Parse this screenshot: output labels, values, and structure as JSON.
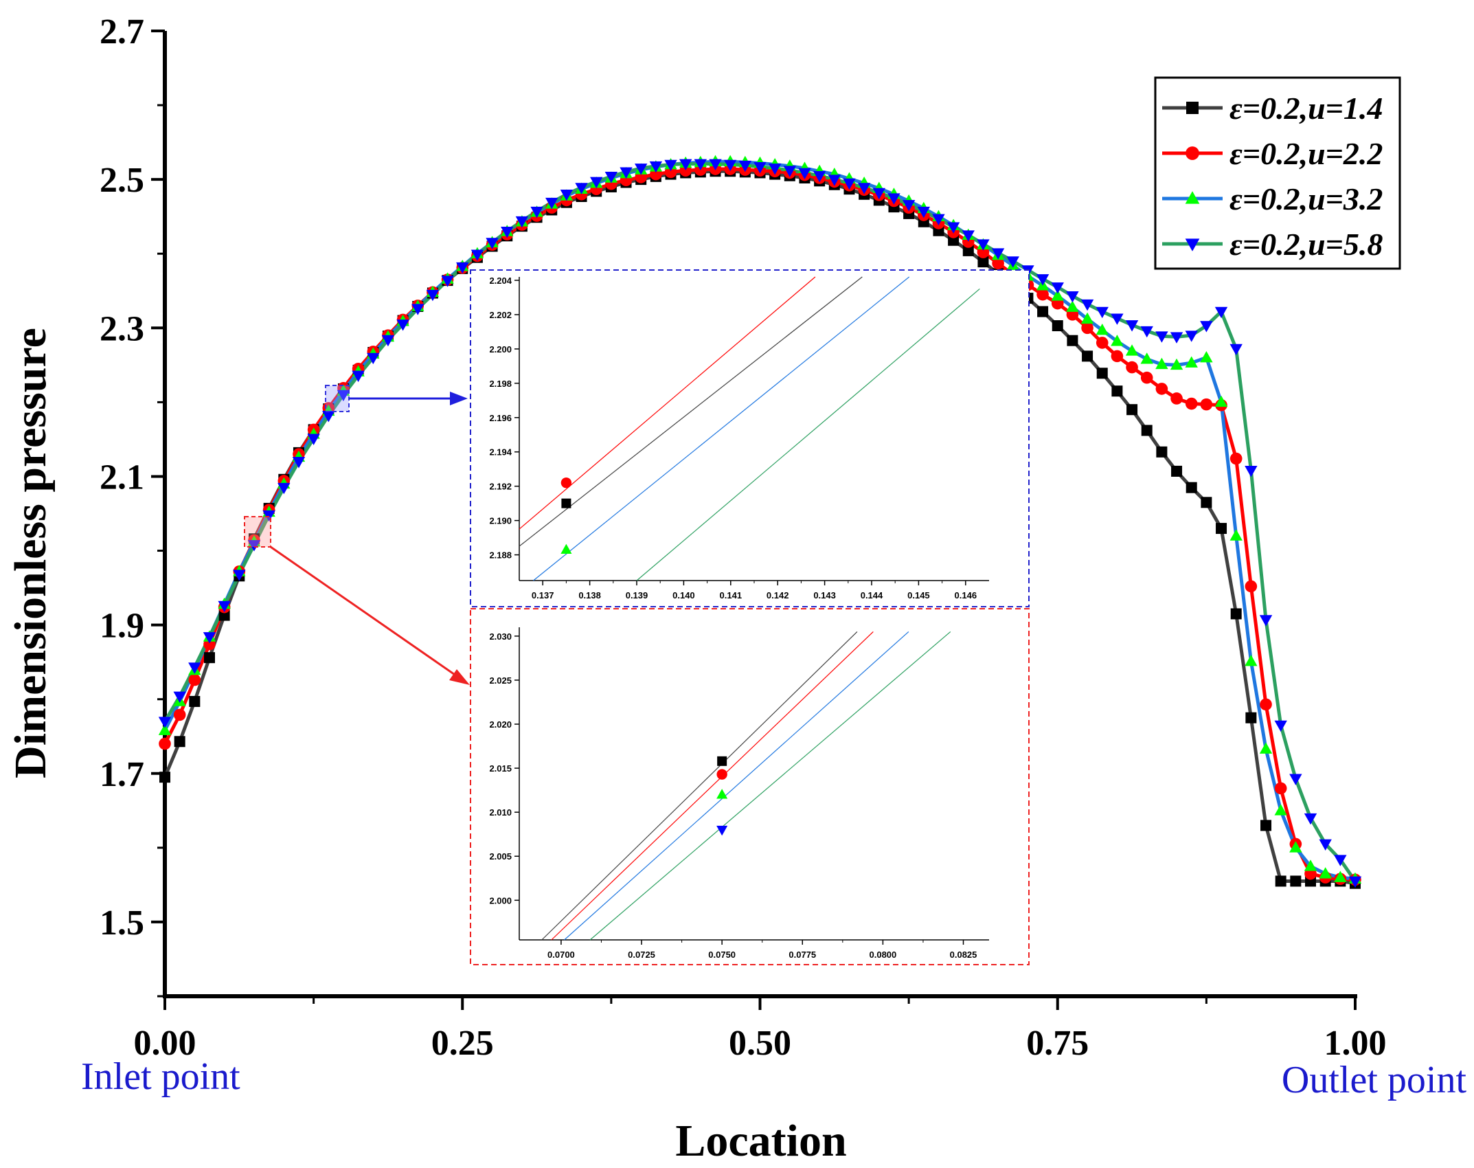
{
  "chart_data": {
    "type": "line",
    "xlabel": "Location",
    "ylabel": "Dimensionless pressure",
    "xlim": [
      0.0,
      1.0
    ],
    "ylim": [
      1.4,
      2.7
    ],
    "xticks": [
      0.0,
      0.25,
      0.5,
      0.75,
      1.0
    ],
    "xtick_labels": [
      "0.00",
      "0.25",
      "0.50",
      "0.75",
      "1.00"
    ],
    "yticks": [
      1.5,
      1.7,
      1.9,
      2.1,
      2.3,
      2.5,
      2.7
    ],
    "ytick_labels": [
      "1.5",
      "1.7",
      "1.9",
      "2.1",
      "2.3",
      "2.5",
      "2.7"
    ],
    "x_annotations": {
      "left": "Inlet point",
      "right": "Outlet point"
    },
    "legend_position": "top-right",
    "series": [
      {
        "name": "ε=0.2,u=1.4",
        "color": "#000000",
        "line_color": "#404040",
        "marker": "square",
        "x": [
          0.0,
          0.0125,
          0.025,
          0.0375,
          0.05,
          0.0625,
          0.075,
          0.0875,
          0.1,
          0.1125,
          0.125,
          0.1375,
          0.15,
          0.1625,
          0.175,
          0.1875,
          0.2,
          0.2125,
          0.225,
          0.2375,
          0.25,
          0.2625,
          0.275,
          0.2875,
          0.3,
          0.3125,
          0.325,
          0.3375,
          0.35,
          0.3625,
          0.375,
          0.3875,
          0.4,
          0.4125,
          0.425,
          0.4375,
          0.45,
          0.4625,
          0.475,
          0.4875,
          0.5,
          0.5125,
          0.525,
          0.5375,
          0.55,
          0.5625,
          0.575,
          0.5875,
          0.6,
          0.6125,
          0.625,
          0.6375,
          0.65,
          0.6625,
          0.675,
          0.6875,
          0.7,
          0.7125,
          0.725,
          0.7375,
          0.75,
          0.7625,
          0.775,
          0.7875,
          0.8,
          0.8125,
          0.825,
          0.8375,
          0.85,
          0.8625,
          0.875,
          0.8875,
          0.9,
          0.9125,
          0.925,
          0.9375,
          0.95,
          0.9625,
          0.975,
          0.9875,
          1.0
        ],
        "y": [
          1.695,
          1.743,
          1.797,
          1.856,
          1.913,
          1.966,
          2.016,
          2.057,
          2.096,
          2.132,
          2.163,
          2.191,
          2.218,
          2.243,
          2.267,
          2.289,
          2.31,
          2.329,
          2.347,
          2.364,
          2.38,
          2.395,
          2.41,
          2.424,
          2.437,
          2.449,
          2.459,
          2.469,
          2.477,
          2.484,
          2.49,
          2.496,
          2.5,
          2.504,
          2.507,
          2.509,
          2.51,
          2.511,
          2.511,
          2.51,
          2.509,
          2.507,
          2.505,
          2.502,
          2.498,
          2.493,
          2.487,
          2.48,
          2.472,
          2.463,
          2.454,
          2.443,
          2.431,
          2.418,
          2.404,
          2.389,
          2.373,
          2.357,
          2.34,
          2.322,
          2.303,
          2.283,
          2.262,
          2.239,
          2.215,
          2.19,
          2.162,
          2.133,
          2.107,
          2.085,
          2.065,
          2.03,
          1.915,
          1.775,
          1.63,
          1.555,
          1.555,
          1.555,
          1.555,
          1.555,
          1.552
        ]
      },
      {
        "name": "ε=0.2,u=2.2",
        "color": "#ff0000",
        "line_color": "#ff0000",
        "marker": "circle",
        "x": [
          0.0,
          0.0125,
          0.025,
          0.0375,
          0.05,
          0.0625,
          0.075,
          0.0875,
          0.1,
          0.1125,
          0.125,
          0.1375,
          0.15,
          0.1625,
          0.175,
          0.1875,
          0.2,
          0.2125,
          0.225,
          0.2375,
          0.25,
          0.2625,
          0.275,
          0.2875,
          0.3,
          0.3125,
          0.325,
          0.3375,
          0.35,
          0.3625,
          0.375,
          0.3875,
          0.4,
          0.4125,
          0.425,
          0.4375,
          0.45,
          0.4625,
          0.475,
          0.4875,
          0.5,
          0.5125,
          0.525,
          0.5375,
          0.55,
          0.5625,
          0.575,
          0.5875,
          0.6,
          0.6125,
          0.625,
          0.6375,
          0.65,
          0.6625,
          0.675,
          0.6875,
          0.7,
          0.7125,
          0.725,
          0.7375,
          0.75,
          0.7625,
          0.775,
          0.7875,
          0.8,
          0.8125,
          0.825,
          0.8375,
          0.85,
          0.8625,
          0.875,
          0.8875,
          0.9,
          0.9125,
          0.925,
          0.9375,
          0.95,
          0.9625,
          0.975,
          0.9875,
          1.0
        ],
        "y": [
          1.74,
          1.779,
          1.826,
          1.874,
          1.924,
          1.972,
          2.014,
          2.055,
          2.094,
          2.13,
          2.163,
          2.192,
          2.219,
          2.245,
          2.268,
          2.29,
          2.311,
          2.33,
          2.348,
          2.365,
          2.381,
          2.397,
          2.412,
          2.426,
          2.439,
          2.451,
          2.462,
          2.472,
          2.48,
          2.487,
          2.494,
          2.499,
          2.503,
          2.507,
          2.51,
          2.512,
          2.513,
          2.514,
          2.514,
          2.513,
          2.512,
          2.511,
          2.509,
          2.506,
          2.502,
          2.497,
          2.492,
          2.486,
          2.479,
          2.471,
          2.462,
          2.452,
          2.441,
          2.429,
          2.416,
          2.402,
          2.387,
          2.372,
          2.358,
          2.345,
          2.333,
          2.318,
          2.3,
          2.28,
          2.262,
          2.247,
          2.233,
          2.218,
          2.205,
          2.198,
          2.197,
          2.196,
          2.124,
          1.952,
          1.793,
          1.68,
          1.605,
          1.565,
          1.56,
          1.558,
          1.557
        ]
      },
      {
        "name": "ε=0.2,u=3.2",
        "color": "#00ff00",
        "line_color": "#1f77e0",
        "marker": "triangle-up",
        "x": [
          0.0,
          0.0125,
          0.025,
          0.0375,
          0.05,
          0.0625,
          0.075,
          0.0875,
          0.1,
          0.1125,
          0.125,
          0.1375,
          0.15,
          0.1625,
          0.175,
          0.1875,
          0.2,
          0.2125,
          0.225,
          0.2375,
          0.25,
          0.2625,
          0.275,
          0.2875,
          0.3,
          0.3125,
          0.325,
          0.3375,
          0.35,
          0.3625,
          0.375,
          0.3875,
          0.4,
          0.4125,
          0.425,
          0.4375,
          0.45,
          0.4625,
          0.475,
          0.4875,
          0.5,
          0.5125,
          0.525,
          0.5375,
          0.55,
          0.5625,
          0.575,
          0.5875,
          0.6,
          0.6125,
          0.625,
          0.6375,
          0.65,
          0.6625,
          0.675,
          0.6875,
          0.7,
          0.7125,
          0.725,
          0.7375,
          0.75,
          0.7625,
          0.775,
          0.7875,
          0.8,
          0.8125,
          0.825,
          0.8375,
          0.85,
          0.8625,
          0.875,
          0.8875,
          0.9,
          0.9125,
          0.925,
          0.9375,
          0.95,
          0.9625,
          0.975,
          0.9875,
          1.0
        ],
        "y": [
          1.758,
          1.797,
          1.839,
          1.884,
          1.928,
          1.972,
          2.012,
          2.052,
          2.09,
          2.126,
          2.157,
          2.188,
          2.215,
          2.241,
          2.265,
          2.288,
          2.309,
          2.329,
          2.348,
          2.366,
          2.383,
          2.4,
          2.415,
          2.43,
          2.443,
          2.456,
          2.467,
          2.478,
          2.487,
          2.495,
          2.502,
          2.508,
          2.513,
          2.517,
          2.52,
          2.522,
          2.523,
          2.524,
          2.524,
          2.523,
          2.522,
          2.52,
          2.518,
          2.515,
          2.511,
          2.507,
          2.501,
          2.495,
          2.488,
          2.48,
          2.471,
          2.461,
          2.45,
          2.438,
          2.425,
          2.412,
          2.398,
          2.384,
          2.37,
          2.357,
          2.343,
          2.328,
          2.312,
          2.297,
          2.282,
          2.269,
          2.258,
          2.251,
          2.25,
          2.253,
          2.26,
          2.2,
          2.02,
          1.851,
          1.733,
          1.65,
          1.6,
          1.575,
          1.565,
          1.56,
          1.558
        ]
      },
      {
        "name": "ε=0.2,u=5.8",
        "color": "#0000ff",
        "line_color": "#2ca060",
        "marker": "triangle-down",
        "x": [
          0.0,
          0.0125,
          0.025,
          0.0375,
          0.05,
          0.0625,
          0.075,
          0.0875,
          0.1,
          0.1125,
          0.125,
          0.1375,
          0.15,
          0.1625,
          0.175,
          0.1875,
          0.2,
          0.2125,
          0.225,
          0.2375,
          0.25,
          0.2625,
          0.275,
          0.2875,
          0.3,
          0.3125,
          0.325,
          0.3375,
          0.35,
          0.3625,
          0.375,
          0.3875,
          0.4,
          0.4125,
          0.425,
          0.4375,
          0.45,
          0.4625,
          0.475,
          0.4875,
          0.5,
          0.5125,
          0.525,
          0.5375,
          0.55,
          0.5625,
          0.575,
          0.5875,
          0.6,
          0.6125,
          0.625,
          0.6375,
          0.65,
          0.6625,
          0.675,
          0.6875,
          0.7,
          0.7125,
          0.725,
          0.7375,
          0.75,
          0.7625,
          0.775,
          0.7875,
          0.8,
          0.8125,
          0.825,
          0.8375,
          0.85,
          0.8625,
          0.875,
          0.8875,
          0.9,
          0.9125,
          0.925,
          0.9375,
          0.95,
          0.9625,
          0.975,
          0.9875,
          1.0
        ],
        "y": [
          1.77,
          1.804,
          1.843,
          1.884,
          1.926,
          1.968,
          2.008,
          2.048,
          2.085,
          2.12,
          2.151,
          2.182,
          2.21,
          2.236,
          2.26,
          2.284,
          2.305,
          2.326,
          2.345,
          2.364,
          2.382,
          2.399,
          2.415,
          2.43,
          2.444,
          2.457,
          2.469,
          2.48,
          2.489,
          2.497,
          2.504,
          2.51,
          2.515,
          2.518,
          2.52,
          2.521,
          2.521,
          2.521,
          2.52,
          2.519,
          2.517,
          2.515,
          2.512,
          2.509,
          2.505,
          2.5,
          2.495,
          2.489,
          2.482,
          2.475,
          2.466,
          2.457,
          2.447,
          2.436,
          2.425,
          2.413,
          2.401,
          2.39,
          2.378,
          2.366,
          2.355,
          2.343,
          2.332,
          2.322,
          2.313,
          2.304,
          2.296,
          2.289,
          2.288,
          2.29,
          2.303,
          2.322,
          2.272,
          2.108,
          1.907,
          1.765,
          1.693,
          1.64,
          1.605,
          1.584,
          1.555
        ]
      }
    ],
    "insets": [
      {
        "name": "upper-inset",
        "frame_color": "#2222cc",
        "type": "line",
        "xlim": [
          0.1365,
          0.1465
        ],
        "ylim": [
          2.1865,
          2.2042
        ],
        "xticks": [
          0.137,
          0.138,
          0.139,
          0.14,
          0.141,
          0.142,
          0.143,
          0.144,
          0.145,
          0.146
        ],
        "xtick_labels": [
          "0.137",
          "0.138",
          "0.139",
          "0.140",
          "0.141",
          "0.142",
          "0.143",
          "0.144",
          "0.145",
          "0.146"
        ],
        "yticks": [
          2.188,
          2.19,
          2.192,
          2.194,
          2.196,
          2.198,
          2.2,
          2.202,
          2.204
        ],
        "ytick_labels": [
          "2.188",
          "2.190",
          "2.192",
          "2.194",
          "2.196",
          "2.198",
          "2.200",
          "2.202",
          "2.204"
        ],
        "lines": [
          {
            "series": "ε=0.2,u=1.4",
            "color": "#404040",
            "x": [
              0.1365,
              0.1438
            ],
            "y": [
              2.1885,
              2.2042
            ]
          },
          {
            "series": "ε=0.2,u=2.2",
            "color": "#ff0000",
            "x": [
              0.1365,
              0.1428
            ],
            "y": [
              2.1895,
              2.2042
            ]
          },
          {
            "series": "ε=0.2,u=3.2",
            "color": "#1f77e0",
            "x": [
              0.1368,
              0.1448
            ],
            "y": [
              2.1865,
              2.2042
            ]
          },
          {
            "series": "ε=0.2,u=5.8",
            "color": "#2ca060",
            "x": [
              0.139,
              0.1463
            ],
            "y": [
              2.1865,
              2.2035
            ]
          }
        ],
        "points": [
          {
            "series": "ε=0.2,u=1.4",
            "x": 0.1375,
            "y": 2.191,
            "marker": "square",
            "color": "#000000"
          },
          {
            "series": "ε=0.2,u=2.2",
            "x": 0.1375,
            "y": 2.1922,
            "marker": "circle",
            "color": "#ff0000"
          },
          {
            "series": "ε=0.2,u=3.2",
            "x": 0.1375,
            "y": 2.1883,
            "marker": "triangle-up",
            "color": "#00ff00"
          }
        ]
      },
      {
        "name": "lower-inset",
        "frame_color": "#ee2222",
        "type": "line",
        "xlim": [
          0.0687,
          0.0833
        ],
        "ylim": [
          1.9955,
          2.031
        ],
        "xticks": [
          0.07,
          0.0725,
          0.075,
          0.0775,
          0.08,
          0.0825
        ],
        "xtick_labels": [
          "0.0700",
          "0.0725",
          "0.0750",
          "0.0775",
          "0.0800",
          "0.0825"
        ],
        "yticks": [
          2.0,
          2.005,
          2.01,
          2.015,
          2.02,
          2.025,
          2.03
        ],
        "ytick_labels": [
          "2.000",
          "2.005",
          "2.010",
          "2.015",
          "2.020",
          "2.025",
          "2.030"
        ],
        "lines": [
          {
            "series": "ε=0.2,u=1.4",
            "color": "#404040",
            "x": [
              0.0694,
              0.0792
            ],
            "y": [
              1.9955,
              2.0305
            ]
          },
          {
            "series": "ε=0.2,u=2.2",
            "color": "#ff0000",
            "x": [
              0.0697,
              0.0797
            ],
            "y": [
              1.9955,
              2.0305
            ]
          },
          {
            "series": "ε=0.2,u=3.2",
            "color": "#1f77e0",
            "x": [
              0.0701,
              0.0808
            ],
            "y": [
              1.9955,
              2.0305
            ]
          },
          {
            "series": "ε=0.2,u=5.8",
            "color": "#2ca060",
            "x": [
              0.0709,
              0.0821
            ],
            "y": [
              1.9955,
              2.0305
            ]
          }
        ],
        "points": [
          {
            "series": "ε=0.2,u=1.4",
            "x": 0.075,
            "y": 2.0158,
            "marker": "square",
            "color": "#000000"
          },
          {
            "series": "ε=0.2,u=2.2",
            "x": 0.075,
            "y": 2.0143,
            "marker": "circle",
            "color": "#ff0000"
          },
          {
            "series": "ε=0.2,u=3.2",
            "x": 0.075,
            "y": 2.012,
            "marker": "triangle-up",
            "color": "#00ff00"
          },
          {
            "series": "ε=0.2,u=5.8",
            "x": 0.075,
            "y": 2.008,
            "marker": "triangle-down",
            "color": "#0000ff"
          }
        ]
      }
    ]
  }
}
